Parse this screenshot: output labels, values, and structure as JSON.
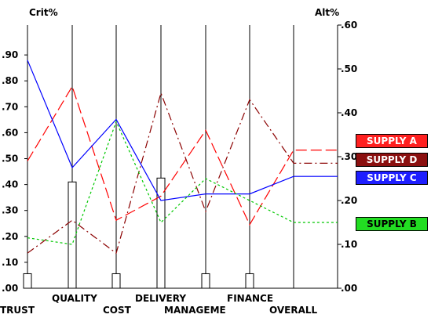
{
  "chart_data": {
    "type": "line",
    "left_axis_label": "Crit%",
    "right_axis_label": "Alt%",
    "left_ticks": [
      ".00",
      ".10",
      ".20",
      ".30",
      ".40",
      ".50",
      ".60",
      ".70",
      ".80",
      ".90"
    ],
    "right_ticks": [
      ".00",
      ".10",
      ".20",
      ".30",
      ".40",
      ".50",
      ".60"
    ],
    "left_range": [
      0,
      1.0
    ],
    "right_range": [
      0,
      0.6
    ],
    "criteria": [
      "TRUST",
      "QUALITY",
      "COST",
      "DELIVERY",
      "MANAGEME",
      "FINANCE",
      "OVERALL"
    ],
    "criteria_weights": [
      0.056,
      0.41,
      0.056,
      0.425,
      0.056,
      0.056,
      null
    ],
    "series": [
      {
        "name": "SUPPLY A",
        "color": "#ff0000",
        "dash": "long",
        "values": [
          0.29,
          0.46,
          0.155,
          0.21,
          0.36,
          0.145,
          0.315,
          0.315
        ]
      },
      {
        "name": "SUPPLY D",
        "color": "#8b0000",
        "dash": "dashdot",
        "values": [
          0.08,
          0.155,
          0.08,
          0.445,
          0.175,
          0.43,
          0.285,
          0.285
        ]
      },
      {
        "name": "SUPPLY C",
        "color": "#0000ff",
        "dash": "solid",
        "values": [
          0.52,
          0.275,
          0.385,
          0.2,
          0.215,
          0.215,
          0.255,
          0.255
        ]
      },
      {
        "name": "SUPPLY B",
        "color": "#00c800",
        "dash": "dotted",
        "values": [
          0.115,
          0.1,
          0.38,
          0.15,
          0.25,
          0.2,
          0.15,
          0.15
        ]
      }
    ],
    "legend": [
      {
        "label": "SUPPLY A",
        "bg": "#ff2020",
        "fg": "#ffffff"
      },
      {
        "label": "SUPPLY D",
        "bg": "#8b1010",
        "fg": "#ffffff"
      },
      {
        "label": "SUPPLY C",
        "bg": "#1e1eff",
        "fg": "#ffffff"
      },
      {
        "label": "SUPPLY B",
        "bg": "#22dd22",
        "fg": "#000000"
      }
    ]
  }
}
